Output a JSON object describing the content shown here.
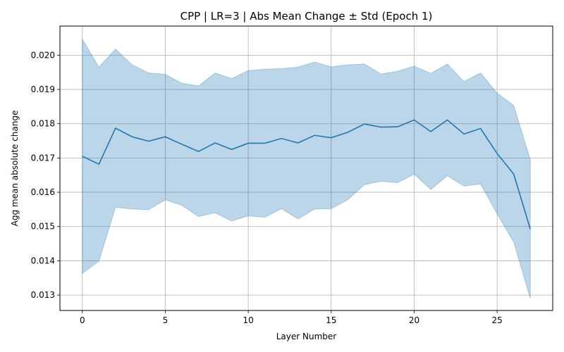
{
  "chart_data": {
    "type": "line",
    "title": "CPP | LR=3 | Abs Mean Change ± Std (Epoch 1)",
    "xlabel": "Layer Number",
    "ylabel": "Agg mean absolute change",
    "xlim": [
      -1.35,
      28.35
    ],
    "ylim": [
      0.01255,
      0.02085
    ],
    "x_ticks": [
      0,
      5,
      10,
      15,
      20,
      25
    ],
    "x_tick_labels": [
      "0",
      "5",
      "10",
      "15",
      "20",
      "25"
    ],
    "y_ticks": [
      0.013,
      0.014,
      0.015,
      0.016,
      0.017,
      0.018,
      0.019,
      0.02
    ],
    "y_tick_labels": [
      "0.013",
      "0.014",
      "0.015",
      "0.016",
      "0.017",
      "0.018",
      "0.019",
      "0.020"
    ],
    "grid": true,
    "line_color": "#1f77b4",
    "band_color": "#1f77b4",
    "x": [
      0,
      1,
      2,
      3,
      4,
      5,
      6,
      7,
      8,
      9,
      10,
      11,
      12,
      13,
      14,
      15,
      16,
      17,
      18,
      19,
      20,
      21,
      22,
      23,
      24,
      25,
      26,
      27
    ],
    "mean": [
      0.01705,
      0.01682,
      0.01787,
      0.01762,
      0.01749,
      0.01762,
      0.0174,
      0.01719,
      0.01744,
      0.01725,
      0.01743,
      0.01743,
      0.01757,
      0.01744,
      0.01766,
      0.01759,
      0.01775,
      0.01799,
      0.0179,
      0.01791,
      0.01811,
      0.01777,
      0.01811,
      0.0177,
      0.01786,
      0.01713,
      0.01653,
      0.01492
    ],
    "upper": [
      0.02047,
      0.01965,
      0.02018,
      0.01972,
      0.01948,
      0.01944,
      0.01918,
      0.0191,
      0.01948,
      0.01932,
      0.01955,
      0.01959,
      0.01961,
      0.01965,
      0.0198,
      0.01966,
      0.01972,
      0.01974,
      0.01945,
      0.01953,
      0.01968,
      0.01947,
      0.01974,
      0.01923,
      0.01948,
      0.01889,
      0.01853,
      0.01695
    ],
    "lower": [
      0.01363,
      0.01399,
      0.01556,
      0.01551,
      0.01549,
      0.01578,
      0.01562,
      0.01529,
      0.0154,
      0.01516,
      0.01531,
      0.01527,
      0.01552,
      0.01522,
      0.01551,
      0.01552,
      0.01578,
      0.01622,
      0.01632,
      0.01628,
      0.01653,
      0.01608,
      0.01648,
      0.01618,
      0.01624,
      0.01537,
      0.01454,
      0.0129
    ]
  }
}
